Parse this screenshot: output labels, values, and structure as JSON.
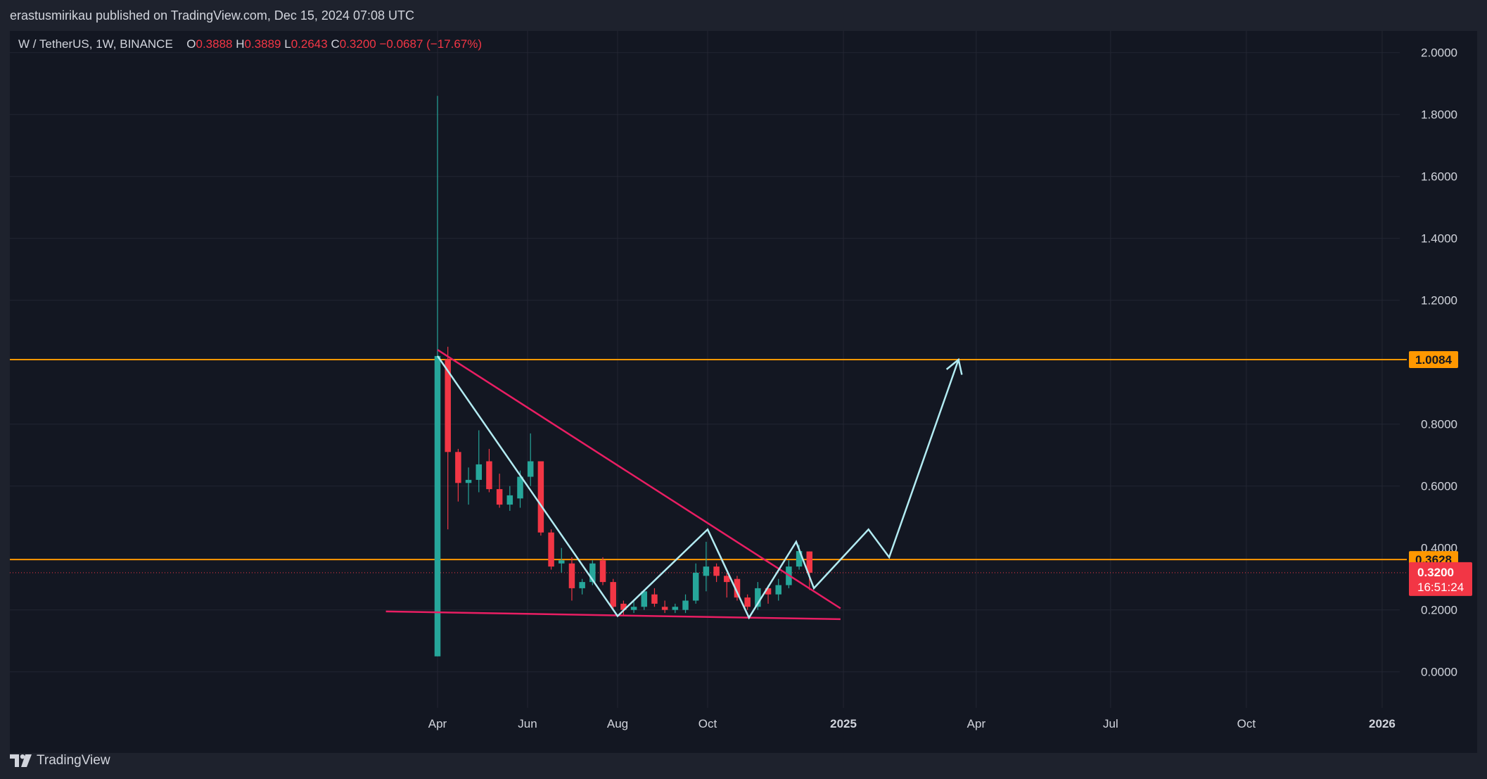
{
  "header": {
    "published": "erastusmirikau published on TradingView.com, Dec 15, 2024 07:08 UTC"
  },
  "legend": {
    "symbol": "W / TetherUS, 1W, BINANCE",
    "open_label": "O",
    "open": "0.3888",
    "high_label": "H",
    "high": "0.3889",
    "low_label": "L",
    "low": "0.2643",
    "close_label": "C",
    "close": "0.3200",
    "change": "−0.0687 (−17.67%)"
  },
  "branding": {
    "name": "TradingView",
    "icon": "tradingview-logo-icon"
  },
  "colors": {
    "background": "#131722",
    "up": "#26a69a",
    "down": "#f23645",
    "level": "#ff9800",
    "trendline": "#e91e63",
    "pattern": "#b2ebf2"
  },
  "chart_data": {
    "type": "candlestick",
    "interval": "1W",
    "y_axis": {
      "range": [
        -0.04,
        2.06
      ],
      "ticks": [
        "2.0000",
        "1.8000",
        "1.6000",
        "1.4000",
        "1.2000",
        "0.8000",
        "0.6000",
        "0.2000",
        "0.0000"
      ],
      "tick_values": [
        2.0,
        1.8,
        1.6,
        1.4,
        1.2,
        0.8,
        0.6,
        0.2,
        0.0
      ],
      "partially_hidden_tick": "0.4000"
    },
    "x_axis": {
      "ticks": [
        {
          "label": "Apr",
          "date": "2024-04-01"
        },
        {
          "label": "Jun",
          "date": "2024-06-01"
        },
        {
          "label": "Aug",
          "date": "2024-08-01"
        },
        {
          "label": "Oct",
          "date": "2024-10-01"
        },
        {
          "label": "2025",
          "date": "2025-01-01",
          "bold": true
        },
        {
          "label": "Apr",
          "date": "2025-04-01"
        },
        {
          "label": "Jul",
          "date": "2025-07-01"
        },
        {
          "label": "Oct",
          "date": "2025-10-01"
        },
        {
          "label": "2026",
          "date": "2026-01-01",
          "bold": true
        }
      ]
    },
    "candles": [
      {
        "date": "2024-04-01",
        "o": 0.05,
        "h": 1.86,
        "l": 0.05,
        "c": 1.02
      },
      {
        "date": "2024-04-08",
        "o": 1.01,
        "h": 1.05,
        "l": 0.46,
        "c": 0.71
      },
      {
        "date": "2024-04-15",
        "o": 0.71,
        "h": 0.72,
        "l": 0.55,
        "c": 0.61
      },
      {
        "date": "2024-04-22",
        "o": 0.61,
        "h": 0.66,
        "l": 0.54,
        "c": 0.62
      },
      {
        "date": "2024-04-29",
        "o": 0.62,
        "h": 0.78,
        "l": 0.58,
        "c": 0.67
      },
      {
        "date": "2024-05-06",
        "o": 0.68,
        "h": 0.72,
        "l": 0.58,
        "c": 0.59
      },
      {
        "date": "2024-05-13",
        "o": 0.59,
        "h": 0.64,
        "l": 0.53,
        "c": 0.54
      },
      {
        "date": "2024-05-20",
        "o": 0.54,
        "h": 0.6,
        "l": 0.52,
        "c": 0.57
      },
      {
        "date": "2024-05-27",
        "o": 0.56,
        "h": 0.65,
        "l": 0.53,
        "c": 0.63
      },
      {
        "date": "2024-06-03",
        "o": 0.63,
        "h": 0.77,
        "l": 0.6,
        "c": 0.68
      },
      {
        "date": "2024-06-10",
        "o": 0.68,
        "h": 0.68,
        "l": 0.44,
        "c": 0.45
      },
      {
        "date": "2024-06-17",
        "o": 0.45,
        "h": 0.46,
        "l": 0.33,
        "c": 0.34
      },
      {
        "date": "2024-06-24",
        "o": 0.35,
        "h": 0.4,
        "l": 0.32,
        "c": 0.36
      },
      {
        "date": "2024-07-01",
        "o": 0.35,
        "h": 0.37,
        "l": 0.23,
        "c": 0.27
      },
      {
        "date": "2024-07-08",
        "o": 0.27,
        "h": 0.3,
        "l": 0.25,
        "c": 0.29
      },
      {
        "date": "2024-07-15",
        "o": 0.29,
        "h": 0.36,
        "l": 0.28,
        "c": 0.35
      },
      {
        "date": "2024-07-22",
        "o": 0.36,
        "h": 0.37,
        "l": 0.28,
        "c": 0.29
      },
      {
        "date": "2024-07-29",
        "o": 0.29,
        "h": 0.3,
        "l": 0.2,
        "c": 0.21
      },
      {
        "date": "2024-08-05",
        "o": 0.22,
        "h": 0.23,
        "l": 0.18,
        "c": 0.2
      },
      {
        "date": "2024-08-12",
        "o": 0.2,
        "h": 0.23,
        "l": 0.19,
        "c": 0.21
      },
      {
        "date": "2024-08-19",
        "o": 0.21,
        "h": 0.26,
        "l": 0.2,
        "c": 0.26
      },
      {
        "date": "2024-08-26",
        "o": 0.25,
        "h": 0.27,
        "l": 0.21,
        "c": 0.22
      },
      {
        "date": "2024-09-02",
        "o": 0.21,
        "h": 0.23,
        "l": 0.19,
        "c": 0.2
      },
      {
        "date": "2024-09-09",
        "o": 0.2,
        "h": 0.22,
        "l": 0.19,
        "c": 0.21
      },
      {
        "date": "2024-09-16",
        "o": 0.2,
        "h": 0.25,
        "l": 0.19,
        "c": 0.23
      },
      {
        "date": "2024-09-23",
        "o": 0.23,
        "h": 0.35,
        "l": 0.22,
        "c": 0.32
      },
      {
        "date": "2024-09-30",
        "o": 0.31,
        "h": 0.42,
        "l": 0.26,
        "c": 0.34
      },
      {
        "date": "2024-10-07",
        "o": 0.34,
        "h": 0.35,
        "l": 0.29,
        "c": 0.31
      },
      {
        "date": "2024-10-14",
        "o": 0.31,
        "h": 0.32,
        "l": 0.24,
        "c": 0.29
      },
      {
        "date": "2024-10-21",
        "o": 0.3,
        "h": 0.31,
        "l": 0.23,
        "c": 0.24
      },
      {
        "date": "2024-10-28",
        "o": 0.24,
        "h": 0.25,
        "l": 0.2,
        "c": 0.21
      },
      {
        "date": "2024-11-04",
        "o": 0.21,
        "h": 0.29,
        "l": 0.2,
        "c": 0.27
      },
      {
        "date": "2024-11-11",
        "o": 0.27,
        "h": 0.28,
        "l": 0.22,
        "c": 0.25
      },
      {
        "date": "2024-11-18",
        "o": 0.25,
        "h": 0.3,
        "l": 0.23,
        "c": 0.28
      },
      {
        "date": "2024-11-25",
        "o": 0.28,
        "h": 0.36,
        "l": 0.27,
        "c": 0.34
      },
      {
        "date": "2024-12-02",
        "o": 0.34,
        "h": 0.41,
        "l": 0.33,
        "c": 0.39
      },
      {
        "date": "2024-12-09",
        "o": 0.3888,
        "h": 0.3889,
        "l": 0.2643,
        "c": 0.32
      }
    ],
    "horizontal_levels": [
      {
        "price": 1.0084,
        "label": "1.0084"
      },
      {
        "price": 0.3628,
        "label": "0.3628"
      }
    ],
    "last_price": {
      "price": 0.32,
      "label": "0.3200",
      "countdown": "16:51:24"
    },
    "drawings": {
      "upper_trendline": [
        {
          "date": "2024-04-01",
          "price": 1.04
        },
        {
          "date": "2024-12-30",
          "price": 0.205
        }
      ],
      "lower_trendline": [
        {
          "date": "2024-02-26",
          "price": 0.195
        },
        {
          "date": "2024-12-30",
          "price": 0.17
        }
      ],
      "pattern_path": [
        {
          "date": "2024-04-01",
          "price": 1.02
        },
        {
          "date": "2024-08-01",
          "price": 0.18
        },
        {
          "date": "2024-10-01",
          "price": 0.46
        },
        {
          "date": "2024-10-29",
          "price": 0.175
        },
        {
          "date": "2024-11-30",
          "price": 0.42
        },
        {
          "date": "2024-12-12",
          "price": 0.27
        },
        {
          "date": "2025-01-18",
          "price": 0.46
        },
        {
          "date": "2025-02-01",
          "price": 0.37
        },
        {
          "date": "2025-03-20",
          "price": 1.0084
        }
      ]
    }
  }
}
